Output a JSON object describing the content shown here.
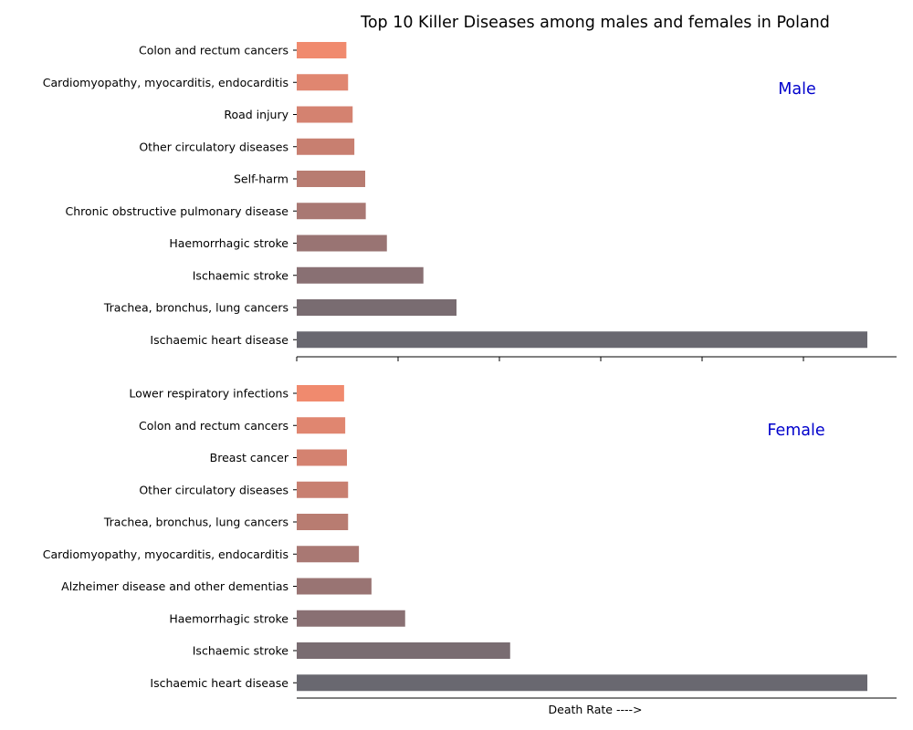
{
  "chart_data": {
    "type": "bar",
    "orientation": "horizontal",
    "title": "Top 10 Killer Diseases among males and females in Poland",
    "xlabel": "Death Rate ---->",
    "grid": false,
    "shared_x": true,
    "xlim": [
      0,
      1
    ],
    "palette": [
      "#f08a6e",
      "#e08670",
      "#d48270",
      "#c87f70",
      "#b87c71",
      "#a97873",
      "#997473",
      "#897073",
      "#796c71",
      "#696870"
    ],
    "panels": [
      {
        "label": "Male",
        "categories": [
          "Colon and rectum cancers",
          "Cardiomyopathy, myocarditis, endocarditis",
          "Road injury",
          "Other circulatory diseases",
          "Self-harm",
          "Chronic obstructive pulmonary disease",
          "Haemorrhagic stroke",
          "Ischaemic stroke",
          "Trachea, bronchus, lung cancers",
          "Ischaemic heart disease"
        ],
        "values": [
          0.087,
          0.09,
          0.098,
          0.101,
          0.12,
          0.121,
          0.158,
          0.222,
          0.28,
          1.0
        ]
      },
      {
        "label": "Female",
        "categories": [
          "Lower respiratory infections",
          "Colon and rectum cancers",
          "Breast cancer",
          "Other circulatory diseases",
          "Trachea, bronchus, lung cancers",
          "Cardiomyopathy, myocarditis, endocarditis",
          "Alzheimer disease and other dementias",
          "Haemorrhagic stroke",
          "Ischaemic stroke",
          "Ischaemic heart disease"
        ],
        "values": [
          0.083,
          0.085,
          0.088,
          0.09,
          0.09,
          0.109,
          0.131,
          0.19,
          0.374,
          1.0
        ]
      }
    ]
  }
}
